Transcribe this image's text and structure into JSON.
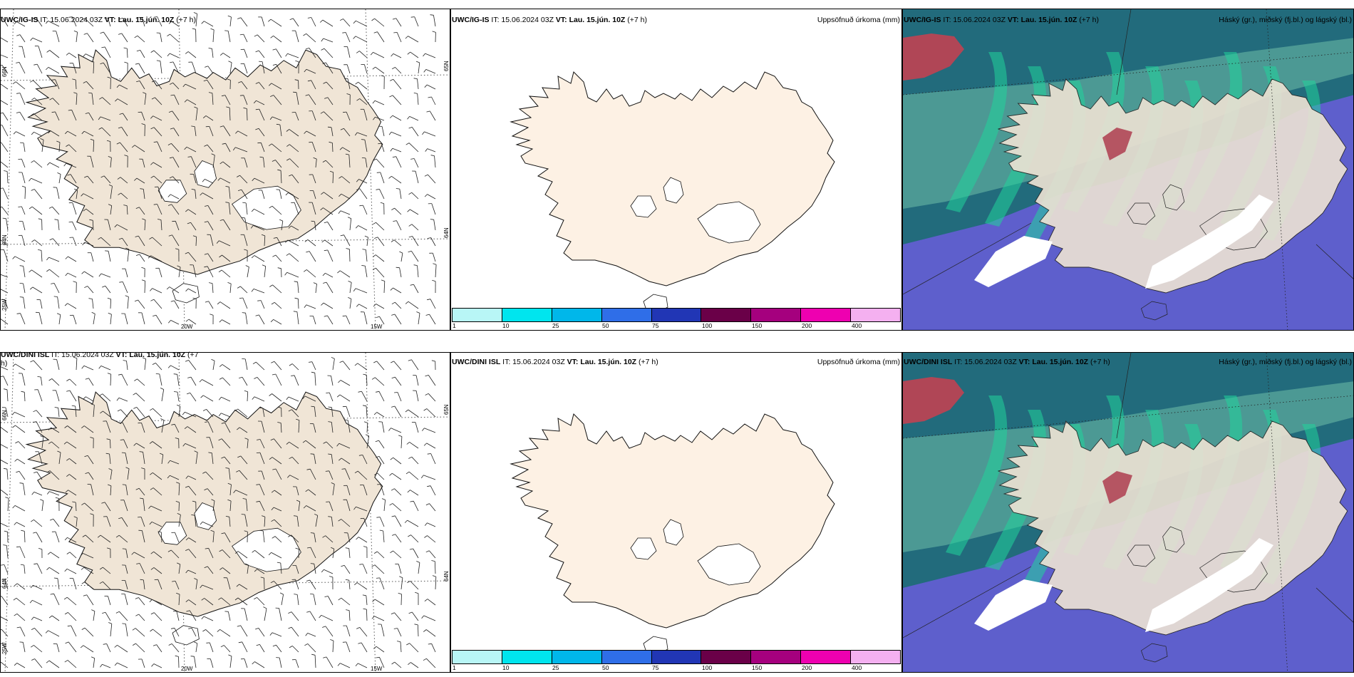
{
  "rows": [
    {
      "row_id": "ig-is",
      "wind": {
        "model": "UWC/IG-IS",
        "it": " IT: 15.06.2024 03Z ",
        "vt": "VT: Lau. 15.jún. 10Z",
        "lead": " (+7 h)"
      },
      "precip": {
        "model": "UWC/IG-IS",
        "it": " IT: 15.06.2024 03Z ",
        "vt": "VT: Lau. 15.jún. 10Z",
        "lead": " (+7 h)",
        "right_title": "Uppsöfnuð úrkoma (mm)"
      },
      "cloud": {
        "model": "UWC/IG-IS",
        "it": " IT: 15.06.2024 03Z ",
        "vt": "VT: Lau. 15.jún. 10Z",
        "lead": " (+7 h)",
        "right_title": "Háský (gr.), miðský (fj.bl.) og lágský (bl.)"
      }
    },
    {
      "row_id": "dini-isl",
      "wind": {
        "model": "UWC/DINI ISL",
        "it": " IT: 15.06.2024 03Z ",
        "vt": "VT: Lau. 15.jún. 10Z",
        "lead": " (+7 h)"
      },
      "precip": {
        "model": "UWC/DINI ISL",
        "it": " IT: 15.06.2024 03Z ",
        "vt": "VT: Lau. 15.jún. 10Z",
        "lead": " (+7 h)",
        "right_title": "Uppsöfnuð úrkoma (mm)"
      },
      "cloud": {
        "model": "UWC/DINI ISL",
        "it": " IT: 15.06.2024 03Z ",
        "vt": "VT: Lau. 15.jún. 10Z",
        "lead": " (+7 h)",
        "right_title": "Háský (gr.), miðský (fj.bl.) og lágský (bl.)"
      }
    }
  ],
  "axis_labels": {
    "lon_20w": "20W",
    "lon_15w": "15W",
    "lat_66n": "66N",
    "lat_64n": "64N",
    "lon_25w": "25W",
    "lat_65n_right": "65N",
    "lat_64n_right": "64N"
  },
  "precip_legend": {
    "labels": [
      "1",
      "10",
      "25",
      "50",
      "75",
      "100",
      "150",
      "200",
      "400"
    ],
    "colors": [
      "#b8f6f6",
      "#00e5ee",
      "#00b7ea",
      "#2f6ee8",
      "#2136b5",
      "#6a0048",
      "#a5007e",
      "#ee00b0",
      "#f4b0f0"
    ]
  },
  "colors": {
    "land_wind": "#f0e5d6",
    "land_precip": "#fdf1e4",
    "land_cloud": "#eee3d4",
    "cloud_sea_base": "#5e5fcc",
    "high_cloud": "#b04656",
    "mid_cloud_dark": "#1f6b77",
    "mid_cloud_light": "#57a59a",
    "low_cloud": "#21d39a"
  }
}
